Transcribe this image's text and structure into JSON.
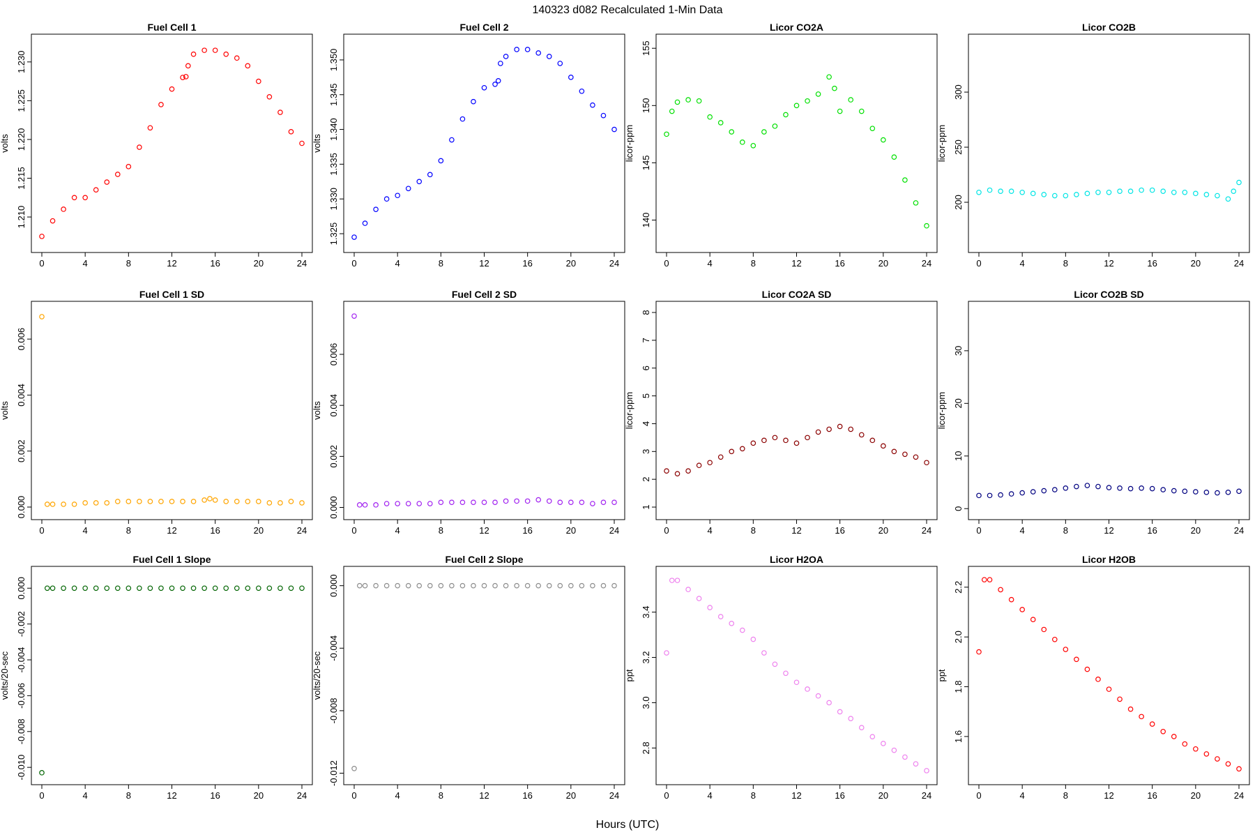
{
  "figure": {
    "title": "140323   d082   Recalculated 1-Min Data",
    "xlabel": "Hours (UTC)"
  },
  "chart_data": [
    {
      "type": "scatter",
      "title": "Fuel Cell 1",
      "xlabel": "",
      "ylabel": "volts",
      "color": "#ff0000",
      "xlim": [
        0,
        24
      ],
      "ylim": [
        1.2065,
        1.2325
      ],
      "xticks": [
        0,
        4,
        8,
        12,
        16,
        20,
        24
      ],
      "yticks": [
        "1.210",
        "1.215",
        "1.220",
        "1.225",
        "1.230"
      ],
      "x": [
        0,
        1,
        2,
        3,
        4,
        5,
        6,
        7,
        8,
        9,
        10,
        11,
        12,
        13,
        13.3,
        13.5,
        14,
        15,
        16,
        17,
        18,
        19,
        20,
        21,
        22,
        23,
        24
      ],
      "y": [
        1.2075,
        1.2095,
        1.211,
        1.2125,
        1.2125,
        1.2135,
        1.2145,
        1.2155,
        1.2165,
        1.219,
        1.2215,
        1.2245,
        1.2265,
        1.228,
        1.2281,
        1.2295,
        1.231,
        1.2315,
        1.2315,
        1.231,
        1.2305,
        1.2295,
        1.2275,
        1.2255,
        1.2235,
        1.221,
        1.2195
      ]
    },
    {
      "type": "scatter",
      "title": "Fuel Cell 2",
      "xlabel": "",
      "ylabel": "volts",
      "color": "#0000ff",
      "xlim": [
        0,
        24
      ],
      "ylim": [
        1.3235,
        1.3525
      ],
      "xticks": [
        0,
        4,
        8,
        12,
        16,
        20,
        24
      ],
      "yticks": [
        "1.325",
        "1.330",
        "1.335",
        "1.340",
        "1.345",
        "1.350"
      ],
      "x": [
        0,
        1,
        2,
        3,
        4,
        5,
        6,
        7,
        8,
        9,
        10,
        11,
        12,
        13,
        13.3,
        13.5,
        14,
        15,
        16,
        17,
        18,
        19,
        20,
        21,
        22,
        23,
        24
      ],
      "y": [
        1.3245,
        1.3265,
        1.3285,
        1.33,
        1.3305,
        1.3315,
        1.3325,
        1.3335,
        1.3355,
        1.3385,
        1.3415,
        1.344,
        1.346,
        1.3465,
        1.347,
        1.3495,
        1.3505,
        1.3515,
        1.3515,
        1.351,
        1.3505,
        1.3495,
        1.3475,
        1.3455,
        1.3435,
        1.342,
        1.34
      ]
    },
    {
      "type": "scatter",
      "title": "Licor CO2A",
      "xlabel": "",
      "ylabel": "licor-ppm",
      "color": "#00e000",
      "xlim": [
        0,
        24
      ],
      "ylim": [
        137.9,
        155.5
      ],
      "xticks": [
        0,
        4,
        8,
        12,
        16,
        20,
        24
      ],
      "yticks": [
        "140",
        "145",
        "150",
        "155"
      ],
      "x": [
        0,
        0.5,
        1,
        2,
        3,
        4,
        5,
        6,
        7,
        8,
        9,
        10,
        11,
        12,
        13,
        14,
        15,
        15.5,
        16,
        17,
        18,
        19,
        20,
        21,
        22,
        23,
        24
      ],
      "y": [
        147.5,
        149.5,
        150.3,
        150.5,
        150.4,
        149,
        148.5,
        147.7,
        146.8,
        146.5,
        147.7,
        148.2,
        149.2,
        150,
        150.4,
        151,
        152.5,
        151.5,
        149.5,
        150.5,
        149.5,
        148,
        147,
        145.5,
        143.5,
        141.5,
        139.5
      ]
    },
    {
      "type": "scatter",
      "title": "Licor CO2B",
      "xlabel": "",
      "ylabel": "licor-ppm",
      "color": "#00e5e5",
      "xlim": [
        0,
        24
      ],
      "ylim": [
        162,
        345
      ],
      "xticks": [
        0,
        4,
        8,
        12,
        16,
        20,
        24
      ],
      "yticks": [
        "200",
        "250",
        "300"
      ],
      "x": [
        0,
        1,
        2,
        3,
        4,
        5,
        6,
        7,
        8,
        9,
        10,
        11,
        12,
        13,
        14,
        15,
        16,
        17,
        18,
        19,
        20,
        21,
        22,
        23,
        23.5,
        24
      ],
      "y": [
        209,
        211,
        210,
        210,
        209,
        208,
        207,
        206,
        206,
        207,
        208,
        209,
        209,
        210,
        210,
        211,
        211,
        210,
        209,
        209,
        208,
        207,
        206,
        203,
        210,
        218
      ]
    },
    {
      "type": "scatter",
      "title": "Fuel Cell 1 SD",
      "xlabel": "",
      "ylabel": "volts",
      "color": "#ffa500",
      "xlim": [
        0,
        24
      ],
      "ylim": [
        -0.00015,
        0.00705
      ],
      "xticks": [
        0,
        4,
        8,
        12,
        16,
        20,
        24
      ],
      "yticks": [
        "0.000",
        "0.002",
        "0.004",
        "0.006"
      ],
      "x": [
        0,
        0.5,
        1,
        2,
        3,
        4,
        5,
        6,
        7,
        8,
        9,
        10,
        11,
        12,
        13,
        14,
        15,
        15.5,
        16,
        17,
        18,
        19,
        20,
        21,
        22,
        23,
        24
      ],
      "y": [
        0.0068,
        0.0001,
        0.0001,
        0.0001,
        0.0001,
        0.00015,
        0.00015,
        0.00015,
        0.0002,
        0.0002,
        0.0002,
        0.0002,
        0.0002,
        0.0002,
        0.0002,
        0.0002,
        0.00025,
        0.0003,
        0.00025,
        0.0002,
        0.0002,
        0.0002,
        0.0002,
        0.00015,
        0.00015,
        0.0002,
        0.00015
      ]
    },
    {
      "type": "scatter",
      "title": "Fuel Cell 2 SD",
      "xlabel": "",
      "ylabel": "volts",
      "color": "#a020f0",
      "xlim": [
        0,
        24
      ],
      "ylim": [
        -0.00015,
        0.00775
      ],
      "xticks": [
        0,
        4,
        8,
        12,
        16,
        20,
        24
      ],
      "yticks": [
        "0.000",
        "0.002",
        "0.004",
        "0.006"
      ],
      "x": [
        0,
        0.5,
        1,
        2,
        3,
        4,
        5,
        6,
        7,
        8,
        9,
        10,
        11,
        12,
        13,
        14,
        15,
        16,
        17,
        18,
        19,
        20,
        21,
        22,
        23,
        24
      ],
      "y": [
        0.0075,
        0.0001,
        0.0001,
        0.0001,
        0.00015,
        0.00015,
        0.00015,
        0.00015,
        0.00015,
        0.0002,
        0.0002,
        0.0002,
        0.0002,
        0.0002,
        0.0002,
        0.00025,
        0.00025,
        0.00025,
        0.0003,
        0.00025,
        0.0002,
        0.0002,
        0.0002,
        0.00015,
        0.0002,
        0.0002
      ]
    },
    {
      "type": "scatter",
      "title": "Licor CO2A SD",
      "xlabel": "",
      "ylabel": "licor-ppm",
      "color": "#8b0000",
      "xlim": [
        0,
        24
      ],
      "ylim": [
        0.85,
        8.1
      ],
      "xticks": [
        0,
        4,
        8,
        12,
        16,
        20,
        24
      ],
      "yticks": [
        "1",
        "2",
        "3",
        "4",
        "5",
        "6",
        "7",
        "8"
      ],
      "x": [
        0,
        1,
        2,
        3,
        4,
        5,
        6,
        7,
        8,
        9,
        10,
        11,
        12,
        13,
        14,
        15,
        16,
        17,
        18,
        19,
        20,
        21,
        22,
        23,
        24
      ],
      "y": [
        2.3,
        2.2,
        2.3,
        2.5,
        2.6,
        2.8,
        3.0,
        3.1,
        3.3,
        3.4,
        3.5,
        3.4,
        3.3,
        3.5,
        3.7,
        3.8,
        3.9,
        3.8,
        3.6,
        3.4,
        3.2,
        3.0,
        2.9,
        2.8,
        2.6
      ]
    },
    {
      "type": "scatter",
      "title": "Licor CO2B SD",
      "xlabel": "",
      "ylabel": "licor-ppm",
      "color": "#000080",
      "xlim": [
        0,
        24
      ],
      "ylim": [
        -0.5,
        37.8
      ],
      "xticks": [
        0,
        4,
        8,
        12,
        16,
        20,
        24
      ],
      "yticks": [
        "0",
        "10",
        "20",
        "30"
      ],
      "x": [
        0,
        1,
        2,
        3,
        4,
        5,
        6,
        7,
        8,
        9,
        10,
        11,
        12,
        13,
        14,
        15,
        16,
        17,
        18,
        19,
        20,
        21,
        22,
        23,
        24
      ],
      "y": [
        2.5,
        2.5,
        2.6,
        2.8,
        3.0,
        3.2,
        3.4,
        3.6,
        3.9,
        4.2,
        4.4,
        4.2,
        4.0,
        3.9,
        3.8,
        3.9,
        3.8,
        3.6,
        3.4,
        3.3,
        3.2,
        3.1,
        3.0,
        3.1,
        3.3
      ]
    },
    {
      "type": "scatter",
      "title": "Fuel Cell 1 Slope",
      "xlabel": "",
      "ylabel": "volts/20-sec",
      "color": "#006400",
      "xlim": [
        0,
        24
      ],
      "ylim": [
        -0.0105,
        0.00075
      ],
      "xticks": [
        0,
        4,
        8,
        12,
        16,
        20,
        24
      ],
      "yticks": [
        "-0.010",
        "-0.008",
        "-0.006",
        "-0.004",
        "-0.002",
        "0.000"
      ],
      "x": [
        0,
        0.5,
        1,
        2,
        3,
        4,
        5,
        6,
        7,
        8,
        9,
        10,
        11,
        12,
        13,
        14,
        15,
        16,
        17,
        18,
        19,
        20,
        21,
        22,
        23,
        24
      ],
      "y": [
        -0.0103,
        0.0,
        0.0,
        0.0,
        0.0,
        0.0,
        0.0,
        0.0,
        0.0,
        0.0,
        0.0,
        0.0,
        0.0,
        0.0,
        0.0,
        0.0,
        0.0,
        0.0,
        0.0,
        0.0,
        0.0,
        0.0,
        0.0,
        0.0,
        0.0,
        0.0
      ]
    },
    {
      "type": "scatter",
      "title": "Fuel Cell 2 Slope",
      "xlabel": "",
      "ylabel": "volts/20-sec",
      "color": "#8c8c8c",
      "xlim": [
        0,
        24
      ],
      "ylim": [
        -0.0122,
        0.0007
      ],
      "xticks": [
        0,
        4,
        8,
        12,
        16,
        20,
        24
      ],
      "yticks": [
        "-0.012",
        "-0.008",
        "-0.004",
        "0.000"
      ],
      "x": [
        0,
        0.5,
        1,
        2,
        3,
        4,
        5,
        6,
        7,
        8,
        9,
        10,
        11,
        12,
        13,
        14,
        15,
        16,
        17,
        18,
        19,
        20,
        21,
        22,
        23,
        24
      ],
      "y": [
        -0.0117,
        0.0,
        0.0,
        0.0,
        0.0,
        0.0,
        0.0,
        0.0,
        0.0,
        0.0,
        0.0,
        0.0,
        0.0,
        0.0,
        0.0,
        0.0,
        0.0,
        0.0,
        0.0,
        0.0,
        0.0,
        0.0,
        0.0,
        0.0,
        0.0,
        0.0
      ]
    },
    {
      "type": "scatter",
      "title": "Licor H2OA",
      "xlabel": "",
      "ylabel": "ppt",
      "color": "#ee82ee",
      "xlim": [
        0,
        24
      ],
      "ylim": [
        2.675,
        3.565
      ],
      "xticks": [
        0,
        4,
        8,
        12,
        16,
        20,
        24
      ],
      "yticks": [
        "2.8",
        "3.0",
        "3.2",
        "3.4"
      ],
      "x": [
        0,
        0.5,
        1,
        2,
        3,
        4,
        5,
        6,
        7,
        8,
        9,
        10,
        11,
        12,
        13,
        14,
        15,
        16,
        17,
        18,
        19,
        20,
        21,
        22,
        23,
        24
      ],
      "y": [
        3.22,
        3.54,
        3.54,
        3.5,
        3.46,
        3.42,
        3.38,
        3.35,
        3.32,
        3.28,
        3.22,
        3.17,
        3.13,
        3.09,
        3.06,
        3.03,
        3.0,
        2.96,
        2.93,
        2.89,
        2.85,
        2.82,
        2.79,
        2.76,
        2.73,
        2.7
      ]
    },
    {
      "type": "scatter",
      "title": "Licor H2OB",
      "xlabel": "",
      "ylabel": "ppt",
      "color": "#ff0000",
      "xlim": [
        0,
        24
      ],
      "ylim": [
        1.44,
        2.25
      ],
      "xticks": [
        0,
        4,
        8,
        12,
        16,
        20,
        24
      ],
      "yticks": [
        "1.6",
        "1.8",
        "2.0",
        "2.2"
      ],
      "x": [
        0,
        0.5,
        1,
        2,
        3,
        4,
        5,
        6,
        7,
        8,
        9,
        10,
        11,
        12,
        13,
        14,
        15,
        16,
        17,
        18,
        19,
        20,
        21,
        22,
        23,
        24
      ],
      "y": [
        1.94,
        2.23,
        2.23,
        2.19,
        2.15,
        2.11,
        2.07,
        2.03,
        1.99,
        1.95,
        1.91,
        1.87,
        1.83,
        1.79,
        1.75,
        1.71,
        1.68,
        1.65,
        1.62,
        1.6,
        1.57,
        1.55,
        1.53,
        1.51,
        1.49,
        1.47
      ]
    }
  ]
}
